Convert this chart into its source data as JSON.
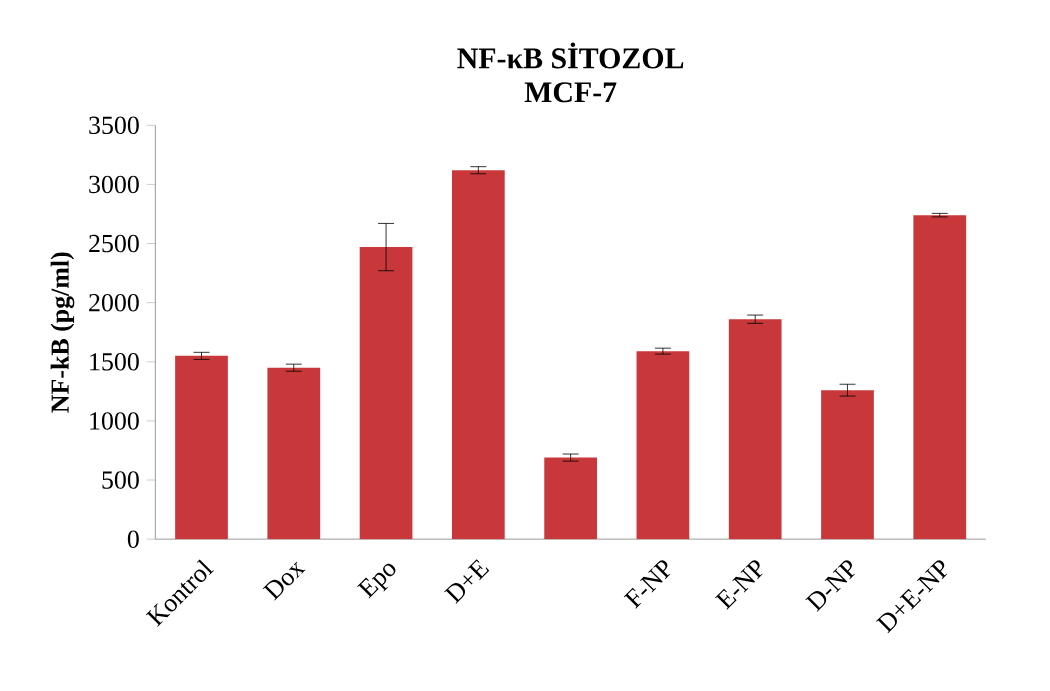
{
  "chart_data": {
    "type": "bar",
    "title": "NF-κB SİTOZOL",
    "subtitle": "MCF-7",
    "ylabel": "NF-kB (pg/ml)",
    "categories": [
      "Kontrol",
      "Dox",
      "Epo",
      "D+E",
      null,
      "F-NP",
      "E-NP",
      "D-NP",
      "D+E-NP"
    ],
    "values": [
      1550,
      1450,
      2470,
      3120,
      690,
      1590,
      1860,
      1260,
      2740
    ],
    "errors": [
      30,
      30,
      200,
      30,
      30,
      25,
      35,
      50,
      15
    ],
    "color": "#c8383a",
    "ylim": [
      0,
      3500
    ],
    "yticks": [
      0,
      500,
      1000,
      1500,
      2000,
      2500,
      3000,
      3500
    ],
    "grid": false
  }
}
